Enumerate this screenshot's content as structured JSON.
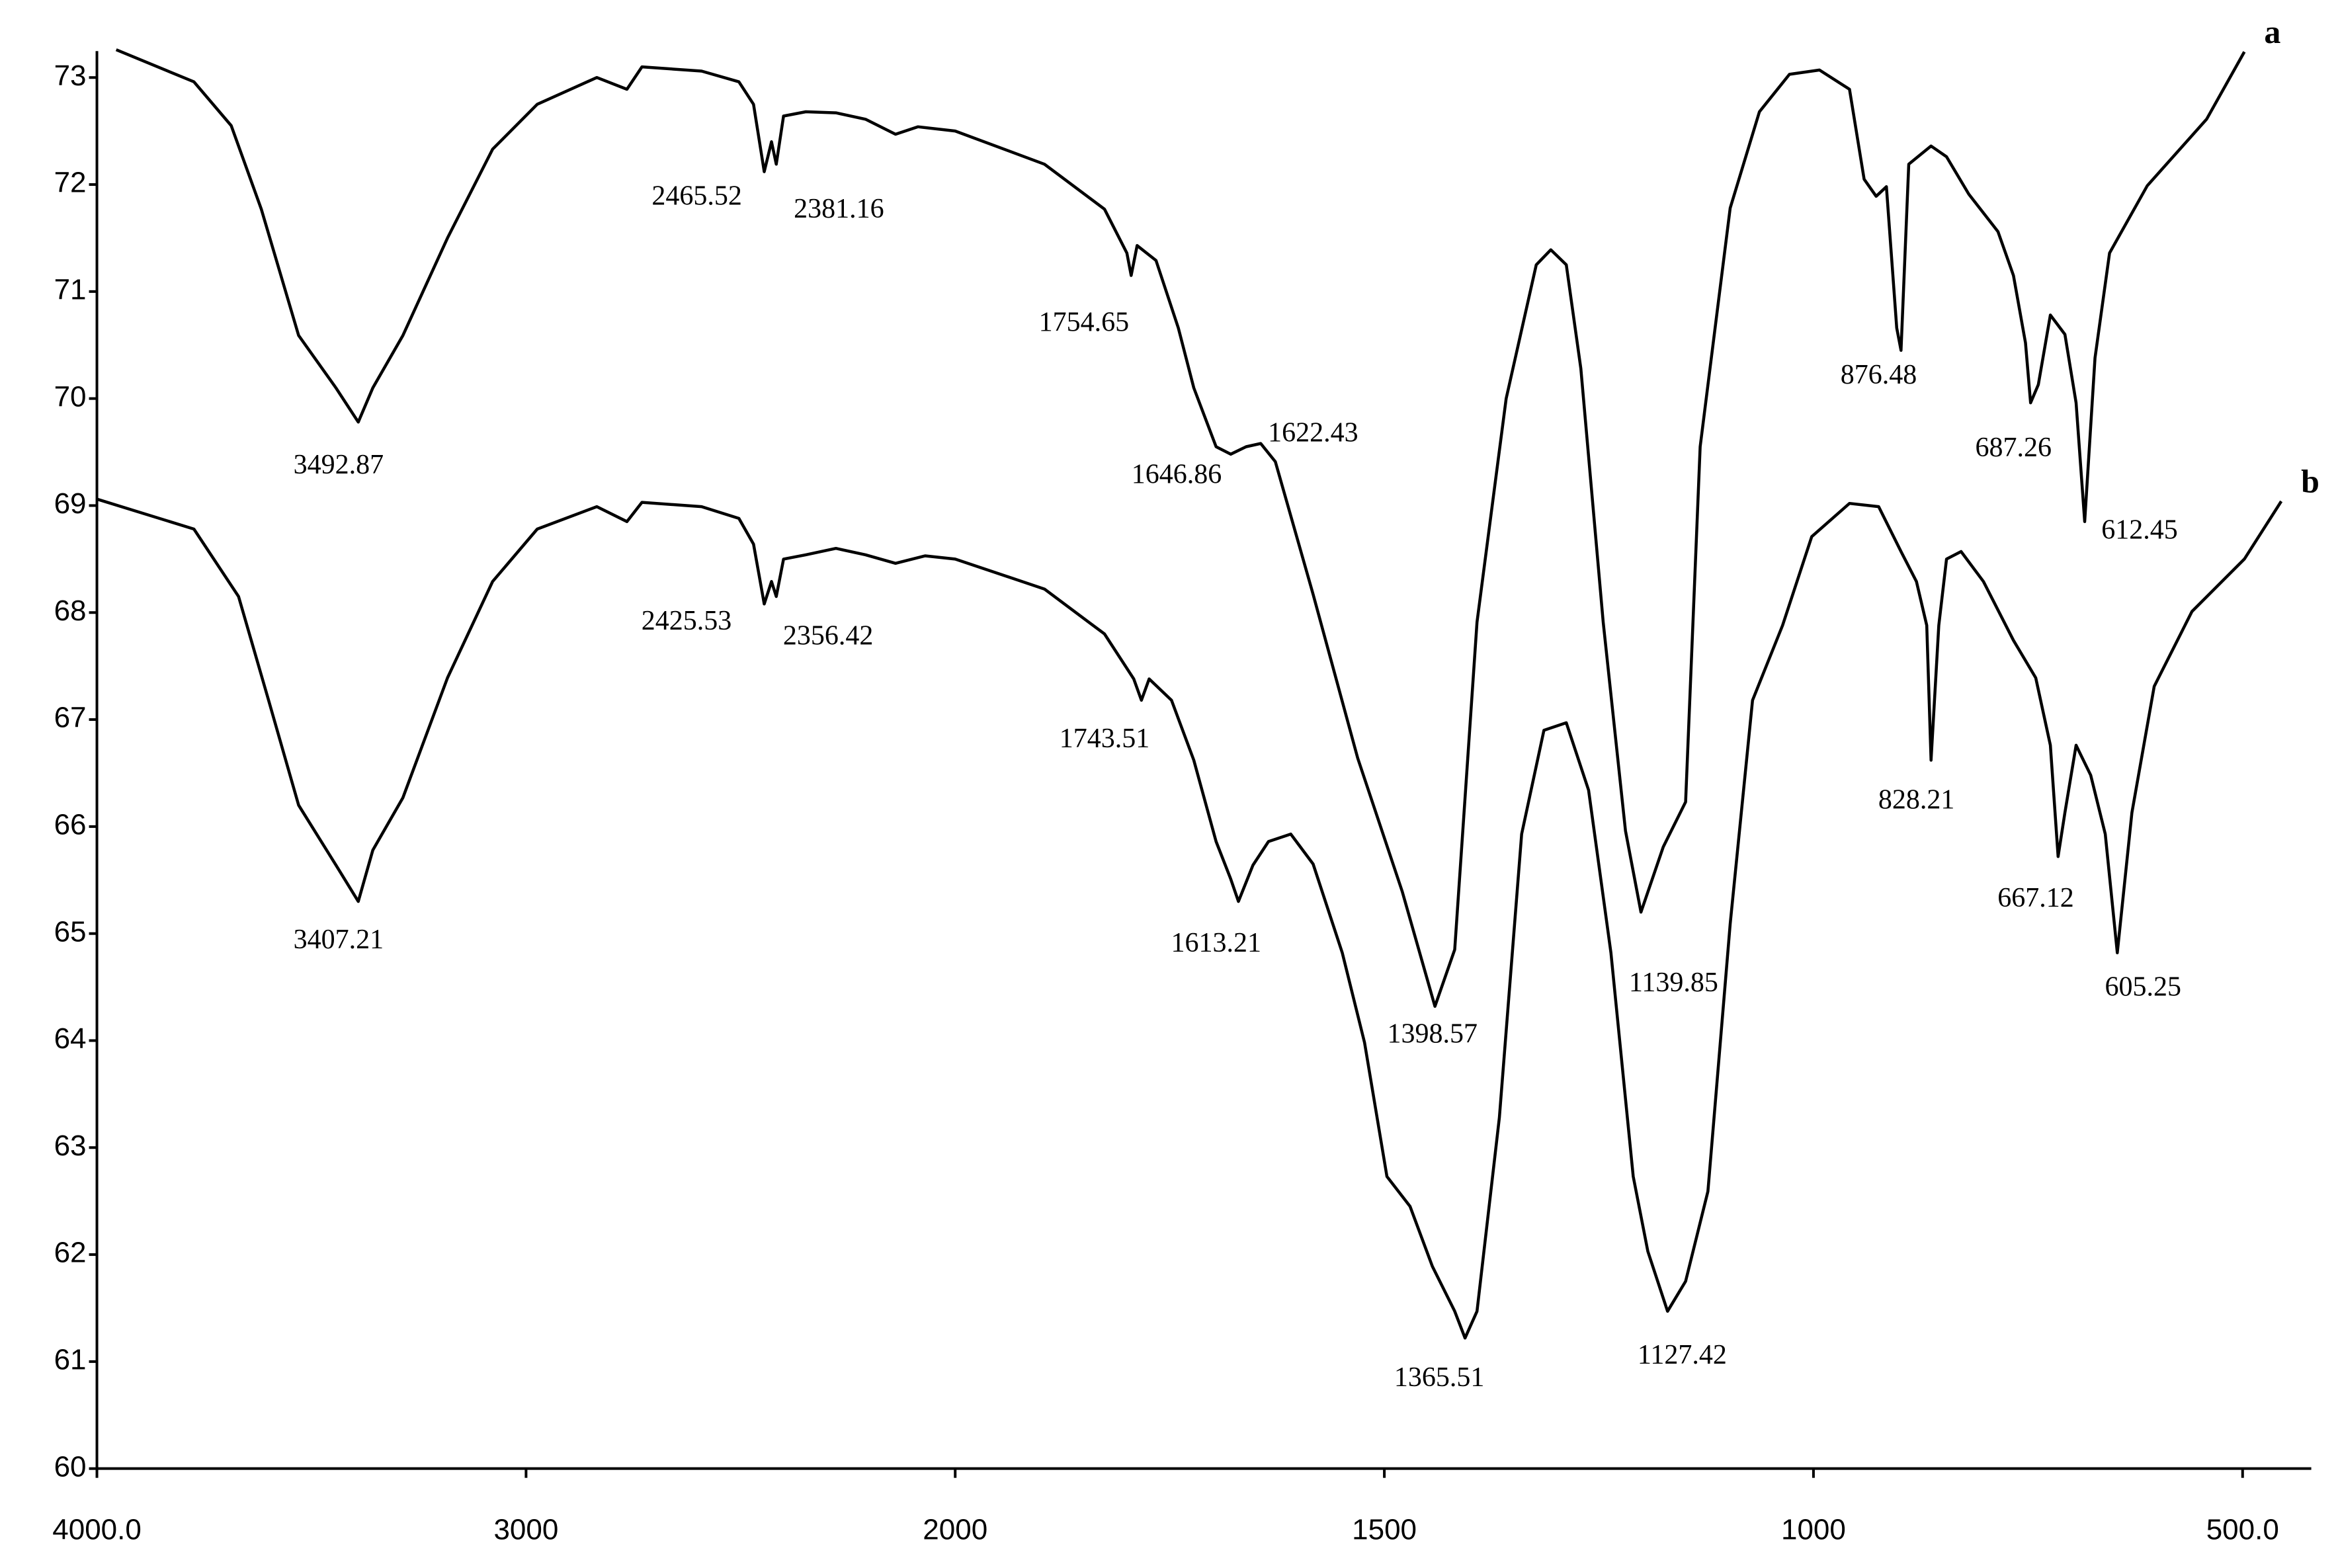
{
  "chart_data": {
    "type": "line",
    "series": [
      {
        "name": "a",
        "color": "#000000",
        "x": [
          3955,
          3774,
          3687,
          3617,
          3530,
          3443,
          3391,
          3357,
          3287,
          3183,
          3078,
          2974,
          2835,
          2765,
          2730,
          2591,
          2504,
          2470,
          2445,
          2428,
          2417,
          2400,
          2348,
          2278,
          2209,
          2139,
          2087,
          2000,
          1896,
          1826,
          1800,
          1795,
          1788,
          1766,
          1740,
          1722,
          1696,
          1679,
          1661,
          1644,
          1627,
          1583,
          1531,
          1479,
          1441,
          1418,
          1392,
          1358,
          1323,
          1306,
          1288,
          1271,
          1245,
          1219,
          1201,
          1175,
          1149,
          1132,
          1097,
          1063,
          1028,
          993,
          958,
          941,
          927,
          915,
          903,
          898,
          889,
          863,
          845,
          819,
          785,
          767,
          753,
          747,
          738,
          724,
          707,
          694,
          684,
          672,
          655,
          611,
          542,
          498
        ],
        "values": [
          73.26,
          72.96,
          72.55,
          71.77,
          70.59,
          70.1,
          69.78,
          70.1,
          70.59,
          71.5,
          72.33,
          72.75,
          73.0,
          72.89,
          73.1,
          73.06,
          72.96,
          72.75,
          72.12,
          72.4,
          72.19,
          72.64,
          72.68,
          72.67,
          72.61,
          72.47,
          72.54,
          72.5,
          72.19,
          71.77,
          71.36,
          71.15,
          71.43,
          71.29,
          70.66,
          70.1,
          69.55,
          69.48,
          69.55,
          69.58,
          69.41,
          68.17,
          66.64,
          65.39,
          64.32,
          64.85,
          67.91,
          70.0,
          71.25,
          71.39,
          71.25,
          70.28,
          67.91,
          65.96,
          65.2,
          65.81,
          66.23,
          69.55,
          71.78,
          72.68,
          73.03,
          73.07,
          72.89,
          72.05,
          71.89,
          71.98,
          70.66,
          70.45,
          72.19,
          72.36,
          72.26,
          71.91,
          71.56,
          71.15,
          70.52,
          69.96,
          70.13,
          70.78,
          70.6,
          69.96,
          68.85,
          70.38,
          71.36,
          71.99,
          72.61,
          73.24
        ]
      },
      {
        "name": "b",
        "color": "#000000",
        "x": [
          4000,
          3774,
          3670,
          3600,
          3530,
          3443,
          3391,
          3357,
          3287,
          3183,
          3078,
          2974,
          2835,
          2765,
          2730,
          2591,
          2504,
          2470,
          2445,
          2428,
          2417,
          2400,
          2348,
          2278,
          2209,
          2139,
          2070,
          2000,
          1896,
          1826,
          1792,
          1783,
          1774,
          1748,
          1722,
          1696,
          1679,
          1670,
          1653,
          1635,
          1609,
          1583,
          1549,
          1523,
          1497,
          1470,
          1444,
          1418,
          1406,
          1392,
          1366,
          1340,
          1314,
          1288,
          1262,
          1236,
          1210,
          1193,
          1170,
          1149,
          1123,
          1097,
          1071,
          1036,
          1002,
          958,
          924,
          898,
          880,
          868,
          863,
          854,
          845,
          828,
          802,
          767,
          741,
          724,
          715,
          707,
          694,
          677,
          660,
          646,
          629,
          603,
          559,
          498,
          455
        ],
        "values": [
          69.06,
          68.78,
          68.15,
          67.18,
          66.2,
          65.64,
          65.3,
          65.78,
          66.27,
          67.39,
          68.29,
          68.78,
          68.99,
          68.85,
          69.03,
          68.99,
          68.88,
          68.64,
          68.08,
          68.29,
          68.15,
          68.5,
          68.54,
          68.6,
          68.54,
          68.46,
          68.53,
          68.5,
          68.22,
          67.8,
          67.38,
          67.18,
          67.38,
          67.18,
          66.62,
          65.86,
          65.51,
          65.3,
          65.64,
          65.86,
          65.93,
          65.65,
          64.82,
          63.98,
          62.73,
          62.45,
          61.89,
          61.47,
          61.22,
          61.47,
          63.28,
          65.93,
          66.9,
          66.97,
          66.34,
          64.82,
          62.73,
          62.03,
          61.47,
          61.75,
          62.59,
          65.09,
          67.18,
          67.88,
          68.71,
          69.02,
          68.99,
          68.57,
          68.29,
          67.88,
          66.62,
          67.88,
          68.5,
          68.57,
          68.29,
          67.74,
          67.39,
          66.76,
          65.72,
          66.13,
          66.76,
          66.48,
          65.93,
          64.82,
          66.13,
          67.31,
          68.01,
          68.5,
          69.04
        ]
      }
    ],
    "annotations": [
      {
        "text": "3492.87",
        "x": 3437,
        "y": 69.36
      },
      {
        "text": "2465.52",
        "x": 2602,
        "y": 71.87
      },
      {
        "text": "2381.16",
        "x": 2271,
        "y": 71.75
      },
      {
        "text": "1754.65",
        "x": 1850,
        "y": 70.69
      },
      {
        "text": "1646.86",
        "x": 1742,
        "y": 69.27
      },
      {
        "text": "1622.43",
        "x": 1583,
        "y": 69.66
      },
      {
        "text": "876.48",
        "x": 924,
        "y": 70.2
      },
      {
        "text": "687.26",
        "x": 767,
        "y": 69.52
      },
      {
        "text": "612.45",
        "x": 620,
        "y": 68.75
      },
      {
        "text": "3407.21",
        "x": 3437,
        "y": 64.92
      },
      {
        "text": "2425.53",
        "x": 2626,
        "y": 67.9
      },
      {
        "text": "2356.42",
        "x": 2296,
        "y": 67.76
      },
      {
        "text": "1743.51",
        "x": 1826,
        "y": 66.8
      },
      {
        "text": "1613.21",
        "x": 1696,
        "y": 64.89
      },
      {
        "text": "1398.57",
        "x": 1444,
        "y": 64.04
      },
      {
        "text": "1139.85",
        "x": 1163,
        "y": 64.52
      },
      {
        "text": "828.21",
        "x": 880,
        "y": 66.23
      },
      {
        "text": "667.12",
        "x": 741,
        "y": 65.31
      },
      {
        "text": "605.25",
        "x": 616,
        "y": 64.48
      },
      {
        "text": "1365.51",
        "x": 1436,
        "y": 60.83
      },
      {
        "text": "1127.42",
        "x": 1153,
        "y": 61.04
      }
    ],
    "xlim": [
      4000,
      420
    ],
    "xticks": [
      {
        "value": 4000,
        "label": "4000.0"
      },
      3000,
      2000,
      1500,
      1000,
      {
        "value": 500,
        "label": "500.0"
      }
    ],
    "ylim": [
      60,
      73
    ],
    "yticks": [
      60,
      61,
      62,
      63,
      64,
      65,
      66,
      67,
      68,
      69,
      70,
      71,
      72,
      73
    ],
    "grid": false
  }
}
